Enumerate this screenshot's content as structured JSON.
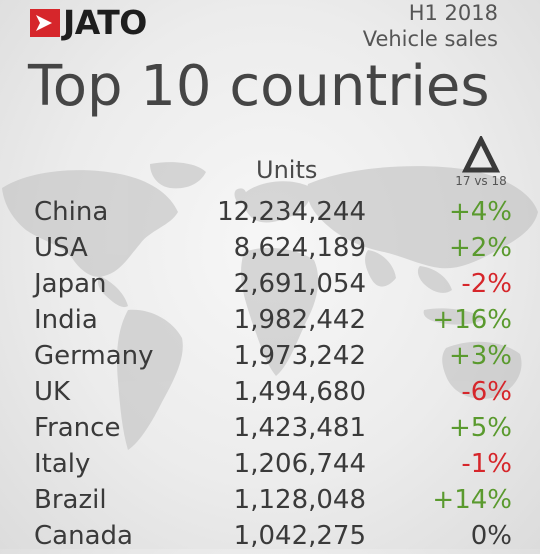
{
  "brand": {
    "logo_text": "JATO",
    "logo_color": "#d6262b"
  },
  "header": {
    "period": "H1 2018",
    "subtitle": "Vehicle sales",
    "title": "Top 10 countries"
  },
  "colors": {
    "positive": "#5a9a2e",
    "negative": "#d6262b",
    "neutral": "#3a3a3a",
    "map": "#b9b9b9"
  },
  "icons": {
    "logo": "jato-arrow-logo",
    "delta": "delta-triangle-icon",
    "background": "world-map"
  },
  "chart_data": {
    "type": "table",
    "title": "Top 10 countries",
    "columns": [
      "",
      "Units",
      "17 vs 18"
    ],
    "units_label": "Units",
    "change_label": "17 vs 18",
    "categories": [
      "China",
      "USA",
      "Japan",
      "India",
      "Germany",
      "UK",
      "France",
      "Italy",
      "Brazil",
      "Canada"
    ],
    "rows": [
      {
        "country": "China",
        "units": "12,234,244",
        "change": "+4%",
        "trend": "positive"
      },
      {
        "country": "USA",
        "units": "8,624,189",
        "change": "+2%",
        "trend": "positive"
      },
      {
        "country": "Japan",
        "units": "2,691,054",
        "change": "-2%",
        "trend": "negative"
      },
      {
        "country": "India",
        "units": "1,982,442",
        "change": "+16%",
        "trend": "positive"
      },
      {
        "country": "Germany",
        "units": "1,973,242",
        "change": "+3%",
        "trend": "positive"
      },
      {
        "country": "UK",
        "units": "1,494,680",
        "change": "-6%",
        "trend": "negative"
      },
      {
        "country": "France",
        "units": "1,423,481",
        "change": "+5%",
        "trend": "positive"
      },
      {
        "country": "Italy",
        "units": "1,206,744",
        "change": "-1%",
        "trend": "negative"
      },
      {
        "country": "Brazil",
        "units": "1,128,048",
        "change": "+14%",
        "trend": "positive"
      },
      {
        "country": "Canada",
        "units": "1,042,275",
        "change": "0%",
        "trend": "neutral"
      }
    ]
  }
}
